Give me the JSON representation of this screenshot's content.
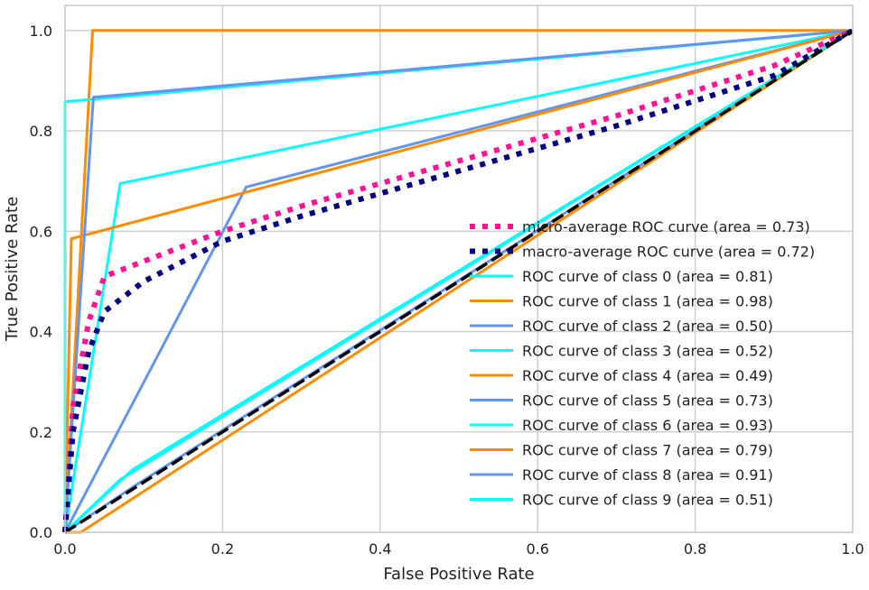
{
  "chart_data": {
    "type": "line",
    "title": "",
    "xlabel": "False Positive Rate",
    "ylabel": "True Positive Rate",
    "xlim": [
      0.0,
      1.0
    ],
    "ylim": [
      0.0,
      1.05
    ],
    "xticks": [
      0.0,
      0.2,
      0.4,
      0.6,
      0.8,
      1.0
    ],
    "yticks": [
      0.0,
      0.2,
      0.4,
      0.6,
      0.8,
      1.0
    ],
    "xtick_labels": [
      "0.0",
      "0.2",
      "0.4",
      "0.6",
      "0.8",
      "1.0"
    ],
    "ytick_labels": [
      "0.0",
      "0.2",
      "0.4",
      "0.6",
      "0.8",
      "1.0"
    ],
    "grid": true,
    "legend_position": "lower-right",
    "series": [
      {
        "name": "micro-average ROC curve (area = 0.73)",
        "color": "#ff1493",
        "style": "dotted-thick",
        "x": [
          0.0,
          0.01,
          0.03,
          0.05,
          0.1,
          0.2,
          0.3,
          0.5,
          0.7,
          0.9,
          1.0
        ],
        "y": [
          0.0,
          0.25,
          0.42,
          0.51,
          0.54,
          0.6,
          0.65,
          0.74,
          0.83,
          0.93,
          1.0
        ]
      },
      {
        "name": "macro-average ROC curve (area = 0.72)",
        "color": "#000080",
        "style": "dotted-thick",
        "x": [
          0.0,
          0.01,
          0.03,
          0.05,
          0.1,
          0.2,
          0.3,
          0.5,
          0.7,
          0.9,
          1.0
        ],
        "y": [
          0.0,
          0.2,
          0.36,
          0.44,
          0.5,
          0.58,
          0.63,
          0.72,
          0.81,
          0.91,
          1.0
        ]
      },
      {
        "name": "ROC curve of class 0 (area = 0.81)",
        "color": "#00ffff",
        "style": "solid",
        "x": [
          0.0,
          0.07,
          1.0
        ],
        "y": [
          0.0,
          0.695,
          1.0
        ]
      },
      {
        "name": "ROC curve of class 1 (area = 0.98)",
        "color": "#ff8c00",
        "style": "solid",
        "x": [
          0.0,
          0.035,
          1.0
        ],
        "y": [
          0.0,
          1.0,
          1.0
        ]
      },
      {
        "name": "ROC curve of class 2 (area = 0.50)",
        "color": "#6495ed",
        "style": "solid",
        "x": [
          0.0,
          0.086,
          1.0
        ],
        "y": [
          0.0,
          0.09,
          1.0
        ]
      },
      {
        "name": "ROC curve of class 3 (area = 0.52)",
        "color": "#00ffff",
        "style": "solid",
        "x": [
          0.0,
          0.086,
          1.0
        ],
        "y": [
          0.0,
          0.125,
          1.0
        ]
      },
      {
        "name": "ROC curve of class 4 (area = 0.49)",
        "color": "#ff8c00",
        "style": "solid",
        "x": [
          0.0,
          0.02,
          1.0
        ],
        "y": [
          0.0,
          0.0,
          1.0
        ]
      },
      {
        "name": "ROC curve of class 5 (area = 0.73)",
        "color": "#6495ed",
        "style": "solid",
        "x": [
          0.0,
          0.23,
          1.0
        ],
        "y": [
          0.0,
          0.688,
          1.0
        ]
      },
      {
        "name": "ROC curve of class 6 (area = 0.93)",
        "color": "#00ffff",
        "style": "solid",
        "x": [
          0.0,
          0.0,
          1.0
        ],
        "y": [
          0.0,
          0.858,
          1.0
        ]
      },
      {
        "name": "ROC curve of class 7 (area = 0.79)",
        "color": "#ff8c00",
        "style": "solid",
        "x": [
          0.0,
          0.008,
          1.0
        ],
        "y": [
          0.0,
          0.585,
          1.0
        ]
      },
      {
        "name": "ROC curve of class 8 (area = 0.91)",
        "color": "#6495ed",
        "style": "solid",
        "x": [
          0.0,
          0.036,
          1.0
        ],
        "y": [
          0.0,
          0.867,
          1.0
        ]
      },
      {
        "name": "ROC curve of class 9 (area = 0.51)",
        "color": "#00ffff",
        "style": "solid",
        "x": [
          0.0,
          0.07,
          1.0
        ],
        "y": [
          0.0,
          0.105,
          1.0
        ]
      }
    ],
    "diagonal": {
      "x": [
        0.0,
        1.0
      ],
      "y": [
        0.0,
        1.0
      ],
      "color": "#000000",
      "style": "dashed"
    }
  }
}
